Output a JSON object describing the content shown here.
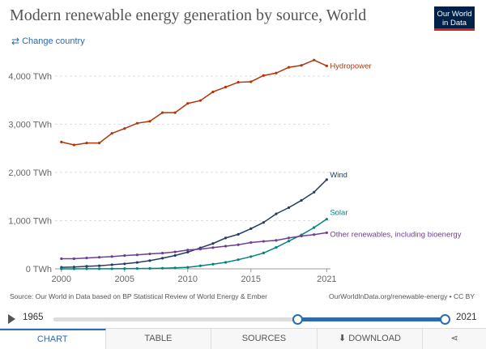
{
  "header": {
    "title": "Modern renewable energy generation by source, World",
    "logo_line1": "Our World",
    "logo_line2": "in Data",
    "change_country": "Change country"
  },
  "chart_data": {
    "type": "line",
    "title": "Modern renewable energy generation by source, World",
    "xlabel": "",
    "ylabel": "",
    "xlim": [
      1999.5,
      2021.3
    ],
    "ylim": [
      0,
      4400
    ],
    "y_ticks": [
      0,
      1000,
      2000,
      3000,
      4000
    ],
    "y_tick_labels": [
      "0 TWh",
      "1,000 TWh",
      "2,000 TWh",
      "3,000 TWh",
      "4,000 TWh"
    ],
    "x_ticks": [
      2000,
      2005,
      2010,
      2015,
      2021
    ],
    "x_tick_labels": [
      "2000",
      "2005",
      "2010",
      "2015",
      "2021"
    ],
    "grid": "horizontal dashed",
    "legend": "line-end labels",
    "x": [
      2000,
      2001,
      2002,
      2003,
      2004,
      2005,
      2006,
      2007,
      2008,
      2009,
      2010,
      2011,
      2012,
      2013,
      2014,
      2015,
      2016,
      2017,
      2018,
      2019,
      2020,
      2021
    ],
    "series": [
      {
        "name": "Hydropower",
        "color": "#b13507",
        "values": [
          2630,
          2570,
          2610,
          2610,
          2810,
          2910,
          3020,
          3060,
          3240,
          3240,
          3430,
          3490,
          3670,
          3770,
          3870,
          3880,
          4010,
          4060,
          4180,
          4220,
          4330,
          4210
        ]
      },
      {
        "name": "Wind",
        "color": "#263d63",
        "values": [
          31,
          38,
          52,
          64,
          85,
          104,
          133,
          170,
          220,
          277,
          346,
          436,
          525,
          640,
          716,
          833,
          962,
          1140,
          1270,
          1420,
          1590,
          1850
        ]
      },
      {
        "name": "Solar",
        "color": "#00847e",
        "values": [
          1,
          1,
          2,
          2,
          3,
          4,
          6,
          8,
          12,
          20,
          32,
          63,
          97,
          134,
          190,
          253,
          329,
          444,
          575,
          704,
          856,
          1030
        ]
      },
      {
        "name": "Other renewables, including bioenergy",
        "color": "#6d3e91",
        "values": [
          210,
          210,
          225,
          240,
          255,
          275,
          290,
          310,
          325,
          350,
          390,
          410,
          440,
          470,
          500,
          545,
          570,
          590,
          640,
          680,
          710,
          750
        ]
      }
    ]
  },
  "footer": {
    "source": "Source: Our World in Data based on BP Statistical Review of World Energy & Ember",
    "license": "OurWorldInData.org/renewable-energy • CC BY"
  },
  "timeline": {
    "start": "1965",
    "end": "2021",
    "range_start_fraction": 0.625,
    "range_end_fraction": 1.0
  },
  "tabs": [
    "Chart",
    "Table",
    "Sources",
    "Download",
    ""
  ],
  "accent_color": "#2c6bb0"
}
